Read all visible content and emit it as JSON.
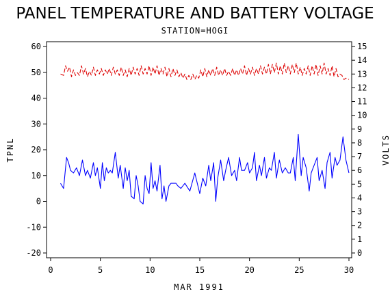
{
  "chart_data": {
    "type": "line",
    "title": "PANEL TEMPERATURE AND BATTERY VOLTAGE",
    "subtitle": "STATION=HOGI",
    "xlabel": "MAR 1991",
    "ylabel_left": "TPNL",
    "ylabel_right": "VOLTS",
    "xlim": [
      0,
      30
    ],
    "x_ticks": [
      0,
      5,
      10,
      15,
      20,
      25,
      30
    ],
    "ylim_left": [
      -20,
      60
    ],
    "y_ticks_left": [
      -20,
      -10,
      0,
      10,
      20,
      30,
      40,
      50,
      60
    ],
    "ylim_right": [
      0,
      15
    ],
    "y_ticks_right": [
      0,
      1,
      2,
      3,
      4,
      5,
      6,
      7,
      8,
      9,
      10,
      11,
      12,
      13,
      14,
      15
    ],
    "grid": false,
    "series": [
      {
        "axis": "left",
        "color": "#0000ff",
        "style": "solid",
        "x": [
          1.0,
          1.3,
          1.6,
          1.8,
          2.0,
          2.3,
          2.6,
          2.9,
          3.2,
          3.5,
          3.7,
          4.0,
          4.3,
          4.5,
          4.7,
          5.0,
          5.2,
          5.4,
          5.6,
          5.8,
          6.0,
          6.2,
          6.5,
          6.8,
          7.0,
          7.3,
          7.5,
          7.7,
          7.9,
          8.1,
          8.4,
          8.6,
          8.8,
          9.0,
          9.3,
          9.5,
          9.7,
          9.9,
          10.1,
          10.3,
          10.5,
          10.7,
          11.0,
          11.2,
          11.4,
          11.6,
          11.9,
          12.1,
          12.3,
          12.6,
          12.8,
          13.1,
          13.5,
          14.0,
          14.5,
          15.0,
          15.3,
          15.6,
          15.9,
          16.1,
          16.4,
          16.6,
          16.8,
          17.1,
          17.4,
          17.6,
          17.9,
          18.2,
          18.5,
          18.7,
          19.0,
          19.2,
          19.5,
          19.8,
          20.0,
          20.3,
          20.5,
          20.7,
          21.0,
          21.2,
          21.5,
          21.7,
          22.0,
          22.2,
          22.5,
          22.7,
          23.0,
          23.3,
          23.6,
          23.9,
          24.1,
          24.4,
          24.6,
          24.9,
          25.2,
          25.4,
          25.7,
          26.0,
          26.2,
          26.5,
          26.8,
          27.0,
          27.3,
          27.6,
          27.8,
          28.1,
          28.3,
          28.6,
          28.8,
          29.1,
          29.4,
          29.7,
          30.0
        ],
        "values": [
          7,
          5,
          17,
          15,
          12,
          11,
          13,
          10,
          16,
          10,
          12,
          9,
          15,
          10,
          13,
          5,
          15,
          8,
          13,
          11,
          12,
          11,
          19,
          9,
          14,
          5,
          13,
          8,
          12,
          2,
          1,
          10,
          6,
          0,
          -1,
          10,
          5,
          3,
          15,
          5,
          8,
          4,
          14,
          1,
          6,
          0,
          6,
          7,
          7,
          7,
          6,
          5,
          7,
          4,
          11,
          3,
          9,
          6,
          14,
          8,
          15,
          0,
          9,
          16,
          8,
          12,
          17,
          10,
          12,
          8,
          17,
          12,
          12,
          15,
          11,
          13,
          19,
          8,
          14,
          10,
          17,
          9,
          13,
          12,
          19,
          9,
          16,
          11,
          13,
          11,
          11,
          17,
          8,
          26,
          10,
          17,
          13,
          4,
          11,
          14,
          17,
          8,
          12,
          5,
          15,
          19,
          9,
          17,
          14,
          16,
          25,
          16,
          11
        ]
      },
      {
        "axis": "right",
        "color": "#dd0000",
        "style": "dashed",
        "x": [
          1.0,
          1.3,
          1.5,
          1.7,
          1.9,
          2.1,
          2.3,
          2.5,
          2.7,
          2.9,
          3.1,
          3.3,
          3.5,
          3.7,
          3.9,
          4.1,
          4.3,
          4.5,
          4.7,
          4.9,
          5.1,
          5.3,
          5.5,
          5.7,
          5.9,
          6.1,
          6.3,
          6.5,
          6.7,
          6.9,
          7.1,
          7.3,
          7.5,
          7.7,
          7.9,
          8.1,
          8.3,
          8.5,
          8.7,
          8.9,
          9.1,
          9.3,
          9.5,
          9.7,
          9.9,
          10.1,
          10.3,
          10.5,
          10.7,
          10.9,
          11.1,
          11.3,
          11.5,
          11.7,
          11.9,
          12.1,
          12.3,
          12.5,
          12.7,
          12.9,
          13.1,
          13.3,
          13.5,
          13.7,
          13.9,
          14.1,
          14.3,
          14.5,
          14.7,
          14.9,
          15.1,
          15.3,
          15.5,
          15.7,
          15.9,
          16.1,
          16.3,
          16.5,
          16.7,
          16.9,
          17.1,
          17.3,
          17.5,
          17.7,
          17.9,
          18.1,
          18.3,
          18.5,
          18.7,
          18.9,
          19.1,
          19.3,
          19.5,
          19.7,
          19.9,
          20.1,
          20.3,
          20.5,
          20.7,
          20.9,
          21.1,
          21.3,
          21.5,
          21.7,
          21.9,
          22.1,
          22.3,
          22.5,
          22.7,
          22.9,
          23.1,
          23.3,
          23.5,
          23.7,
          23.9,
          24.1,
          24.3,
          24.5,
          24.7,
          24.9,
          25.1,
          25.3,
          25.5,
          25.7,
          25.9,
          26.1,
          26.3,
          26.5,
          26.7,
          26.9,
          27.1,
          27.3,
          27.5,
          27.7,
          27.9,
          28.1,
          28.3,
          28.5,
          28.7,
          28.9,
          29.1,
          29.3,
          29.5,
          29.7,
          30.0
        ],
        "values": [
          13.0,
          12.9,
          13.6,
          13.2,
          13.5,
          12.8,
          13.3,
          12.9,
          13.1,
          12.9,
          13.6,
          13.0,
          13.4,
          12.8,
          13.2,
          12.9,
          13.5,
          12.9,
          13.3,
          13.0,
          13.4,
          12.9,
          13.3,
          13.0,
          13.4,
          12.9,
          13.5,
          13.0,
          13.3,
          12.9,
          13.5,
          12.9,
          13.3,
          12.8,
          13.4,
          12.9,
          13.5,
          13.0,
          13.4,
          12.9,
          13.6,
          13.0,
          13.4,
          13.0,
          13.6,
          12.9,
          13.5,
          13.0,
          13.6,
          12.9,
          13.4,
          13.0,
          13.5,
          12.8,
          13.4,
          12.8,
          13.4,
          12.9,
          13.3,
          12.8,
          13.1,
          12.7,
          13.0,
          12.6,
          12.9,
          12.6,
          13.0,
          12.6,
          12.9,
          12.7,
          13.3,
          12.8,
          13.4,
          12.8,
          13.3,
          12.9,
          13.4,
          12.9,
          13.5,
          12.9,
          13.3,
          12.9,
          13.4,
          12.9,
          13.2,
          12.9,
          13.4,
          12.9,
          13.3,
          12.9,
          13.4,
          13.0,
          13.6,
          12.9,
          13.4,
          13.0,
          13.5,
          12.9,
          13.4,
          13.0,
          13.6,
          13.0,
          13.5,
          13.0,
          13.7,
          13.0,
          13.7,
          13.1,
          13.8,
          13.0,
          13.6,
          13.0,
          13.8,
          13.1,
          13.6,
          13.0,
          13.7,
          13.1,
          13.8,
          13.0,
          13.5,
          12.9,
          13.4,
          13.0,
          13.6,
          12.9,
          13.6,
          13.0,
          13.7,
          12.9,
          13.6,
          13.0,
          13.8,
          13.0,
          13.4,
          12.9,
          13.6,
          12.8,
          13.4,
          12.8,
          13.0,
          12.9,
          12.6,
          12.7,
          12.6
        ]
      }
    ]
  }
}
